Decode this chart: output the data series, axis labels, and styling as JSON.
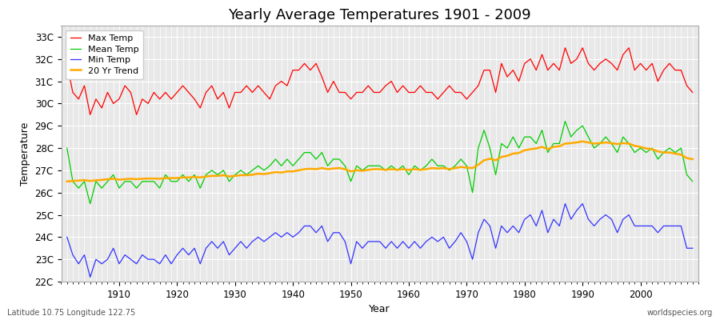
{
  "title": "Yearly Average Temperatures 1901 - 2009",
  "xlabel": "Year",
  "ylabel": "Temperature",
  "subtitle_left": "Latitude 10.75 Longitude 122.75",
  "subtitle_right": "worldspecies.org",
  "years": [
    1901,
    1902,
    1903,
    1904,
    1905,
    1906,
    1907,
    1908,
    1909,
    1910,
    1911,
    1912,
    1913,
    1914,
    1915,
    1916,
    1917,
    1918,
    1919,
    1920,
    1921,
    1922,
    1923,
    1924,
    1925,
    1926,
    1927,
    1928,
    1929,
    1930,
    1931,
    1932,
    1933,
    1934,
    1935,
    1936,
    1937,
    1938,
    1939,
    1940,
    1941,
    1942,
    1943,
    1944,
    1945,
    1946,
    1947,
    1948,
    1949,
    1950,
    1951,
    1952,
    1953,
    1954,
    1955,
    1956,
    1957,
    1958,
    1959,
    1960,
    1961,
    1962,
    1963,
    1964,
    1965,
    1966,
    1967,
    1968,
    1969,
    1970,
    1971,
    1972,
    1973,
    1974,
    1975,
    1976,
    1977,
    1978,
    1979,
    1980,
    1981,
    1982,
    1983,
    1984,
    1985,
    1986,
    1987,
    1988,
    1989,
    1990,
    1991,
    1992,
    1993,
    1994,
    1995,
    1996,
    1997,
    1998,
    1999,
    2000,
    2001,
    2002,
    2003,
    2004,
    2005,
    2006,
    2007,
    2008,
    2009
  ],
  "max_temp": [
    31.8,
    30.5,
    30.2,
    30.8,
    29.5,
    30.2,
    29.8,
    30.5,
    30.0,
    30.2,
    30.8,
    30.5,
    29.5,
    30.2,
    30.0,
    30.5,
    30.2,
    30.5,
    30.2,
    30.5,
    30.8,
    30.5,
    30.2,
    29.8,
    30.5,
    30.8,
    30.2,
    30.5,
    29.8,
    30.5,
    30.5,
    30.8,
    30.5,
    30.8,
    30.5,
    30.2,
    30.8,
    31.0,
    30.8,
    31.5,
    31.5,
    31.8,
    31.5,
    31.8,
    31.2,
    30.5,
    31.0,
    30.5,
    30.5,
    30.2,
    30.5,
    30.5,
    30.8,
    30.5,
    30.5,
    30.8,
    31.0,
    30.5,
    30.8,
    30.5,
    30.5,
    30.8,
    30.5,
    30.5,
    30.2,
    30.5,
    30.8,
    30.5,
    30.5,
    30.2,
    30.5,
    30.8,
    31.5,
    31.5,
    30.5,
    31.8,
    31.2,
    31.5,
    31.0,
    31.8,
    32.0,
    31.5,
    32.2,
    31.5,
    31.8,
    31.5,
    32.5,
    31.8,
    32.0,
    32.5,
    31.8,
    31.5,
    31.8,
    32.0,
    31.8,
    31.5,
    32.2,
    32.5,
    31.5,
    31.8,
    31.5,
    31.8,
    31.0,
    31.5,
    31.8,
    31.5,
    31.5,
    30.8,
    30.5
  ],
  "mean_temp": [
    28.0,
    26.5,
    26.2,
    26.5,
    25.5,
    26.5,
    26.2,
    26.5,
    26.8,
    26.2,
    26.5,
    26.5,
    26.2,
    26.5,
    26.5,
    26.5,
    26.2,
    26.8,
    26.5,
    26.5,
    26.8,
    26.5,
    26.8,
    26.2,
    26.8,
    27.0,
    26.8,
    27.0,
    26.5,
    26.8,
    27.0,
    26.8,
    27.0,
    27.2,
    27.0,
    27.2,
    27.5,
    27.2,
    27.5,
    27.2,
    27.5,
    27.8,
    27.8,
    27.5,
    27.8,
    27.2,
    27.5,
    27.5,
    27.2,
    26.5,
    27.2,
    27.0,
    27.2,
    27.2,
    27.2,
    27.0,
    27.2,
    27.0,
    27.2,
    26.8,
    27.2,
    27.0,
    27.2,
    27.5,
    27.2,
    27.2,
    27.0,
    27.2,
    27.5,
    27.2,
    26.0,
    28.0,
    28.8,
    28.0,
    26.8,
    28.2,
    28.0,
    28.5,
    28.0,
    28.5,
    28.5,
    28.2,
    28.8,
    27.8,
    28.2,
    28.2,
    29.2,
    28.5,
    28.8,
    29.0,
    28.5,
    28.0,
    28.2,
    28.5,
    28.2,
    27.8,
    28.5,
    28.2,
    27.8,
    28.0,
    27.8,
    28.0,
    27.5,
    27.8,
    28.0,
    27.8,
    28.0,
    26.8,
    26.5
  ],
  "min_temp": [
    24.0,
    23.2,
    22.8,
    23.2,
    22.2,
    23.0,
    22.8,
    23.0,
    23.5,
    22.8,
    23.2,
    23.0,
    22.8,
    23.2,
    23.0,
    23.0,
    22.8,
    23.2,
    22.8,
    23.2,
    23.5,
    23.2,
    23.5,
    22.8,
    23.5,
    23.8,
    23.5,
    23.8,
    23.2,
    23.5,
    23.8,
    23.5,
    23.8,
    24.0,
    23.8,
    24.0,
    24.2,
    24.0,
    24.2,
    24.0,
    24.2,
    24.5,
    24.5,
    24.2,
    24.5,
    23.8,
    24.2,
    24.2,
    23.8,
    22.8,
    23.8,
    23.5,
    23.8,
    23.8,
    23.8,
    23.5,
    23.8,
    23.5,
    23.8,
    23.5,
    23.8,
    23.5,
    23.8,
    24.0,
    23.8,
    24.0,
    23.5,
    23.8,
    24.2,
    23.8,
    23.0,
    24.2,
    24.8,
    24.5,
    23.5,
    24.5,
    24.2,
    24.5,
    24.2,
    24.8,
    25.0,
    24.5,
    25.2,
    24.2,
    24.8,
    24.5,
    25.5,
    24.8,
    25.2,
    25.5,
    24.8,
    24.5,
    24.8,
    25.0,
    24.8,
    24.2,
    24.8,
    25.0,
    24.5,
    24.5,
    24.5,
    24.5,
    24.2,
    24.5,
    24.5,
    24.5,
    24.5,
    23.5,
    23.5
  ],
  "trend_years": [
    1901,
    1902,
    1903,
    1904,
    1905,
    1906,
    1907,
    1908,
    1909,
    1910,
    1911,
    1912,
    1913,
    1914,
    1915,
    1916,
    1917,
    1918,
    1919,
    1920,
    1921,
    1922,
    1923,
    1924,
    1925,
    1926,
    1927,
    1928,
    1929,
    1930,
    1931,
    1932,
    1933,
    1934,
    1935,
    1936,
    1937,
    1938,
    1939,
    1940,
    1941,
    1942,
    1943,
    1944,
    1945,
    1946,
    1947,
    1948,
    1949,
    1950,
    1951,
    1952,
    1953,
    1954,
    1955,
    1956,
    1957,
    1958,
    1959,
    1960,
    1961,
    1962,
    1963,
    1964,
    1965,
    1966,
    1967,
    1968,
    1969,
    1970,
    1971,
    1972,
    1973,
    1974,
    1975,
    1976,
    1977,
    1978,
    1979,
    1980,
    1981,
    1982,
    1983,
    1984,
    1985,
    1986,
    1987,
    1988,
    1989,
    1990,
    1991,
    1992,
    1993,
    1994,
    1995,
    1996,
    1997,
    1998,
    1999,
    2000,
    2001,
    2002,
    2003,
    2004,
    2005,
    2006,
    2007,
    2008,
    2009
  ],
  "trend_vals": [
    26.5,
    26.52,
    26.54,
    26.56,
    26.52,
    26.55,
    26.57,
    26.6,
    26.62,
    26.58,
    26.6,
    26.62,
    26.6,
    26.62,
    26.63,
    26.63,
    26.62,
    26.65,
    26.65,
    26.65,
    26.68,
    26.68,
    26.7,
    26.68,
    26.72,
    26.75,
    26.75,
    26.78,
    26.72,
    26.75,
    26.78,
    26.78,
    26.8,
    26.85,
    26.83,
    26.87,
    26.92,
    26.9,
    26.95,
    26.95,
    27.0,
    27.05,
    27.07,
    27.05,
    27.1,
    27.05,
    27.08,
    27.1,
    27.05,
    26.95,
    27.0,
    26.98,
    27.02,
    27.05,
    27.05,
    27.02,
    27.05,
    27.02,
    27.05,
    27.02,
    27.05,
    27.02,
    27.05,
    27.1,
    27.08,
    27.1,
    27.05,
    27.1,
    27.15,
    27.12,
    27.1,
    27.25,
    27.45,
    27.52,
    27.45,
    27.6,
    27.65,
    27.75,
    27.78,
    27.9,
    27.95,
    27.98,
    28.05,
    27.95,
    28.05,
    28.08,
    28.2,
    28.22,
    28.25,
    28.3,
    28.25,
    28.2,
    28.22,
    28.25,
    28.22,
    28.18,
    28.22,
    28.2,
    28.1,
    28.05,
    27.98,
    27.95,
    27.85,
    27.8,
    27.8,
    27.75,
    27.7,
    27.55,
    27.5
  ],
  "ylim": [
    22.0,
    33.5
  ],
  "yticks": [
    22,
    23,
    24,
    25,
    26,
    27,
    28,
    29,
    30,
    31,
    32,
    33
  ],
  "ytick_labels": [
    "22C",
    "23C",
    "24C",
    "25C",
    "26C",
    "27C",
    "28C",
    "29C",
    "30C",
    "31C",
    "32C",
    "33C"
  ],
  "xlim_min": 1900,
  "xlim_max": 2010,
  "xticks": [
    1910,
    1920,
    1930,
    1940,
    1950,
    1960,
    1970,
    1980,
    1990,
    2000
  ],
  "max_color": "#ff0000",
  "mean_color": "#00cc00",
  "min_color": "#3333ff",
  "trend_color": "#ffaa00",
  "bg_color": "#ffffff",
  "plot_bg_color": "#e8e8e8",
  "grid_color": "#ffffff",
  "legend_labels": [
    "Max Temp",
    "Mean Temp",
    "Min Temp",
    "20 Yr Trend"
  ],
  "title_fontsize": 13,
  "label_fontsize": 9,
  "tick_fontsize": 8.5
}
